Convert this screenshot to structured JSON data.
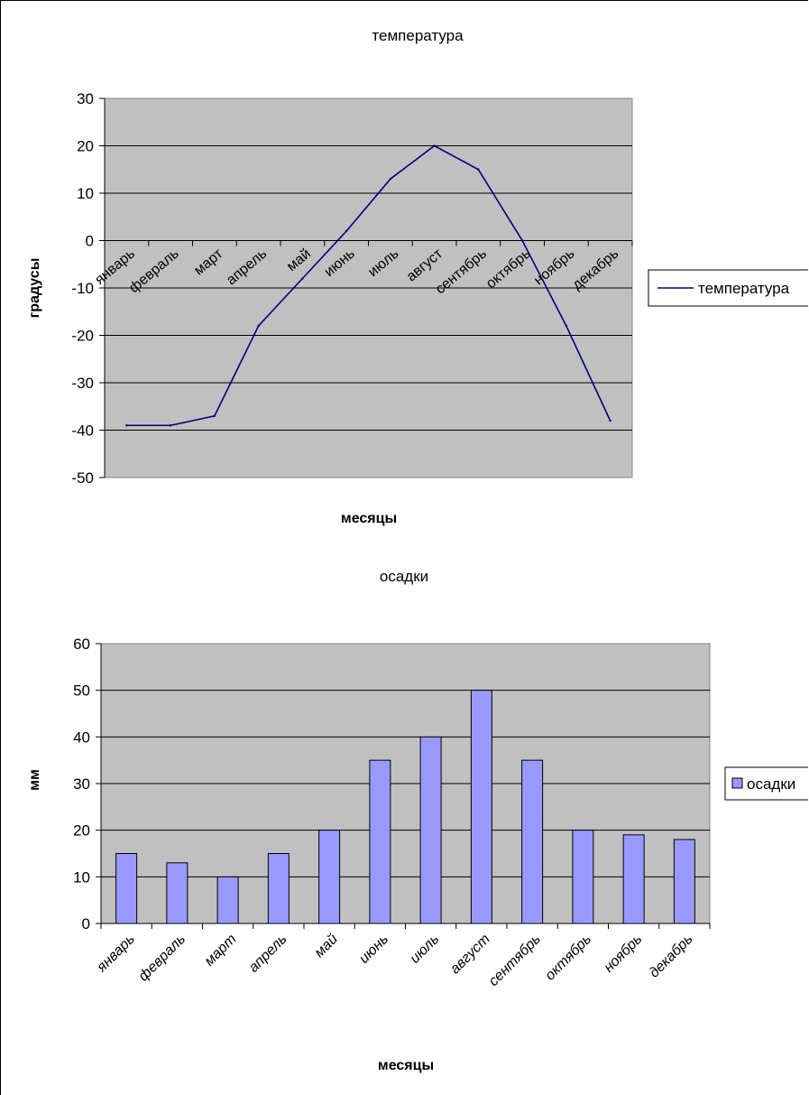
{
  "chart_data": [
    {
      "type": "line",
      "title": "температура",
      "xlabel": "месяцы",
      "ylabel": "градусы",
      "categories": [
        "январь",
        "февраль",
        "март",
        "апрель",
        "май",
        "июнь",
        "июль",
        "август",
        "сентябрь",
        "октябрь",
        "ноябрь",
        "декабрь"
      ],
      "series": [
        {
          "name": "температура",
          "values": [
            -39,
            -39,
            -37,
            -18,
            -8,
            2,
            13,
            20,
            15,
            0,
            -18,
            -38
          ],
          "color": "#000080"
        }
      ],
      "ylim": [
        -50,
        30
      ],
      "yticks": [
        30,
        20,
        10,
        0,
        -10,
        -20,
        -30,
        -40,
        -50
      ],
      "grid": true,
      "plot_background": "#c0c0c0",
      "legend": "right"
    },
    {
      "type": "bar",
      "title": "осадки",
      "xlabel": "месяцы",
      "ylabel": "мм",
      "categories": [
        "январь",
        "февраль",
        "март",
        "апрель",
        "май",
        "июнь",
        "июль",
        "август",
        "сентябрь",
        "октябрь",
        "ноябрь",
        "декабрь"
      ],
      "series": [
        {
          "name": "осадки",
          "values": [
            15,
            13,
            10,
            15,
            20,
            35,
            40,
            50,
            35,
            20,
            19,
            18
          ],
          "color": "#9999ff"
        }
      ],
      "ylim": [
        0,
        60
      ],
      "yticks": [
        60,
        50,
        40,
        30,
        20,
        10,
        0
      ],
      "grid": true,
      "plot_background": "#c0c0c0",
      "legend": "right"
    }
  ]
}
